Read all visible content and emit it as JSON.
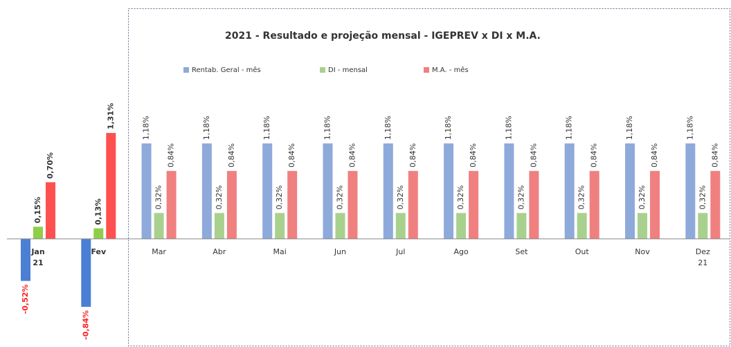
{
  "chart_data": {
    "type": "bar",
    "title": "2021 - Resultado e projeção mensal - IGEPREV x DI x M.A.",
    "categories": [
      "Jan 21",
      "Fev",
      "Mar",
      "Abr",
      "Mai",
      "Jun",
      "Jul",
      "Ago",
      "Set",
      "Out",
      "Nov",
      "Dez 21"
    ],
    "ylim": [
      -1.2,
      2.2
    ],
    "series": [
      {
        "name": "Rentab. Geral - mês",
        "color": "#8eaadb",
        "colors": [
          "#4a7fd4",
          "#4a7fd4",
          "#8eaadb",
          "#8eaadb",
          "#8eaadb",
          "#8eaadb",
          "#8eaadb",
          "#8eaadb",
          "#8eaadb",
          "#8eaadb",
          "#8eaadb",
          "#8eaadb"
        ],
        "values": [
          -0.52,
          -0.84,
          1.18,
          1.18,
          1.18,
          1.18,
          1.18,
          1.18,
          1.18,
          1.18,
          1.18,
          1.18
        ],
        "value_labels": [
          "-0,52%",
          "-0,84%",
          "1,18%",
          "1,18%",
          "1,18%",
          "1,18%",
          "1,18%",
          "1,18%",
          "1,18%",
          "1,18%",
          "1,18%",
          "1,18%"
        ]
      },
      {
        "name": "DI - mensal",
        "color": "#a9d18e",
        "colors": [
          "#8fce4a",
          "#8fce4a",
          "#a9d18e",
          "#a9d18e",
          "#a9d18e",
          "#a9d18e",
          "#a9d18e",
          "#a9d18e",
          "#a9d18e",
          "#a9d18e",
          "#a9d18e",
          "#a9d18e"
        ],
        "values": [
          0.15,
          0.13,
          0.32,
          0.32,
          0.32,
          0.32,
          0.32,
          0.32,
          0.32,
          0.32,
          0.32,
          0.32
        ],
        "value_labels": [
          "0,15%",
          "0,13%",
          "0,32%",
          "0,32%",
          "0,32%",
          "0,32%",
          "0,32%",
          "0,32%",
          "0,32%",
          "0,32%",
          "0,32%",
          "0,32%"
        ]
      },
      {
        "name": "M.A. - mês",
        "color": "#f08080",
        "colors": [
          "#ff5050",
          "#ff5050",
          "#f08080",
          "#f08080",
          "#f08080",
          "#f08080",
          "#f08080",
          "#f08080",
          "#f08080",
          "#f08080",
          "#f08080",
          "#f08080"
        ],
        "values": [
          0.7,
          1.31,
          0.84,
          0.84,
          0.84,
          0.84,
          0.84,
          0.84,
          0.84,
          0.84,
          0.84,
          0.84
        ],
        "value_labels": [
          "0,70%",
          "1,31%",
          "0,84%",
          "0,84%",
          "0,84%",
          "0,84%",
          "0,84%",
          "0,84%",
          "0,84%",
          "0,84%",
          "0,84%",
          "0,84%"
        ]
      }
    ]
  }
}
